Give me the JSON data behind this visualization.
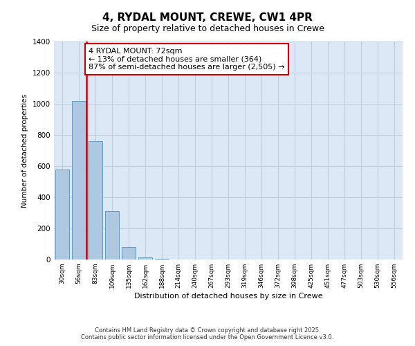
{
  "title": "4, RYDAL MOUNT, CREWE, CW1 4PR",
  "subtitle": "Size of property relative to detached houses in Crewe",
  "xlabel": "Distribution of detached houses by size in Crewe",
  "ylabel": "Number of detached properties",
  "bar_categories": [
    "30sqm",
    "56sqm",
    "83sqm",
    "109sqm",
    "135sqm",
    "162sqm",
    "188sqm",
    "214sqm",
    "240sqm",
    "267sqm",
    "293sqm",
    "319sqm",
    "346sqm",
    "372sqm",
    "398sqm",
    "425sqm",
    "451sqm",
    "477sqm",
    "503sqm",
    "530sqm",
    "556sqm"
  ],
  "bar_values": [
    580,
    1020,
    760,
    310,
    80,
    15,
    5,
    2,
    1,
    1,
    0,
    0,
    0,
    0,
    0,
    0,
    0,
    0,
    0,
    0,
    0
  ],
  "bar_color": "#adc8e0",
  "bar_edge_color": "#6699bb",
  "background_color": "#dce8f5",
  "grid_color": "#c0cfe0",
  "vline_color": "#cc0000",
  "vline_x": 1.45,
  "annotation_text": "4 RYDAL MOUNT: 72sqm\n← 13% of detached houses are smaller (364)\n87% of semi-detached houses are larger (2,505) →",
  "annotation_box_facecolor": "#ffffff",
  "annotation_box_edgecolor": "#cc0000",
  "ylim": [
    0,
    1400
  ],
  "yticks": [
    0,
    200,
    400,
    600,
    800,
    1000,
    1200,
    1400
  ],
  "footer1": "Contains HM Land Registry data © Crown copyright and database right 2025.",
  "footer2": "Contains public sector information licensed under the Open Government Licence v3.0."
}
